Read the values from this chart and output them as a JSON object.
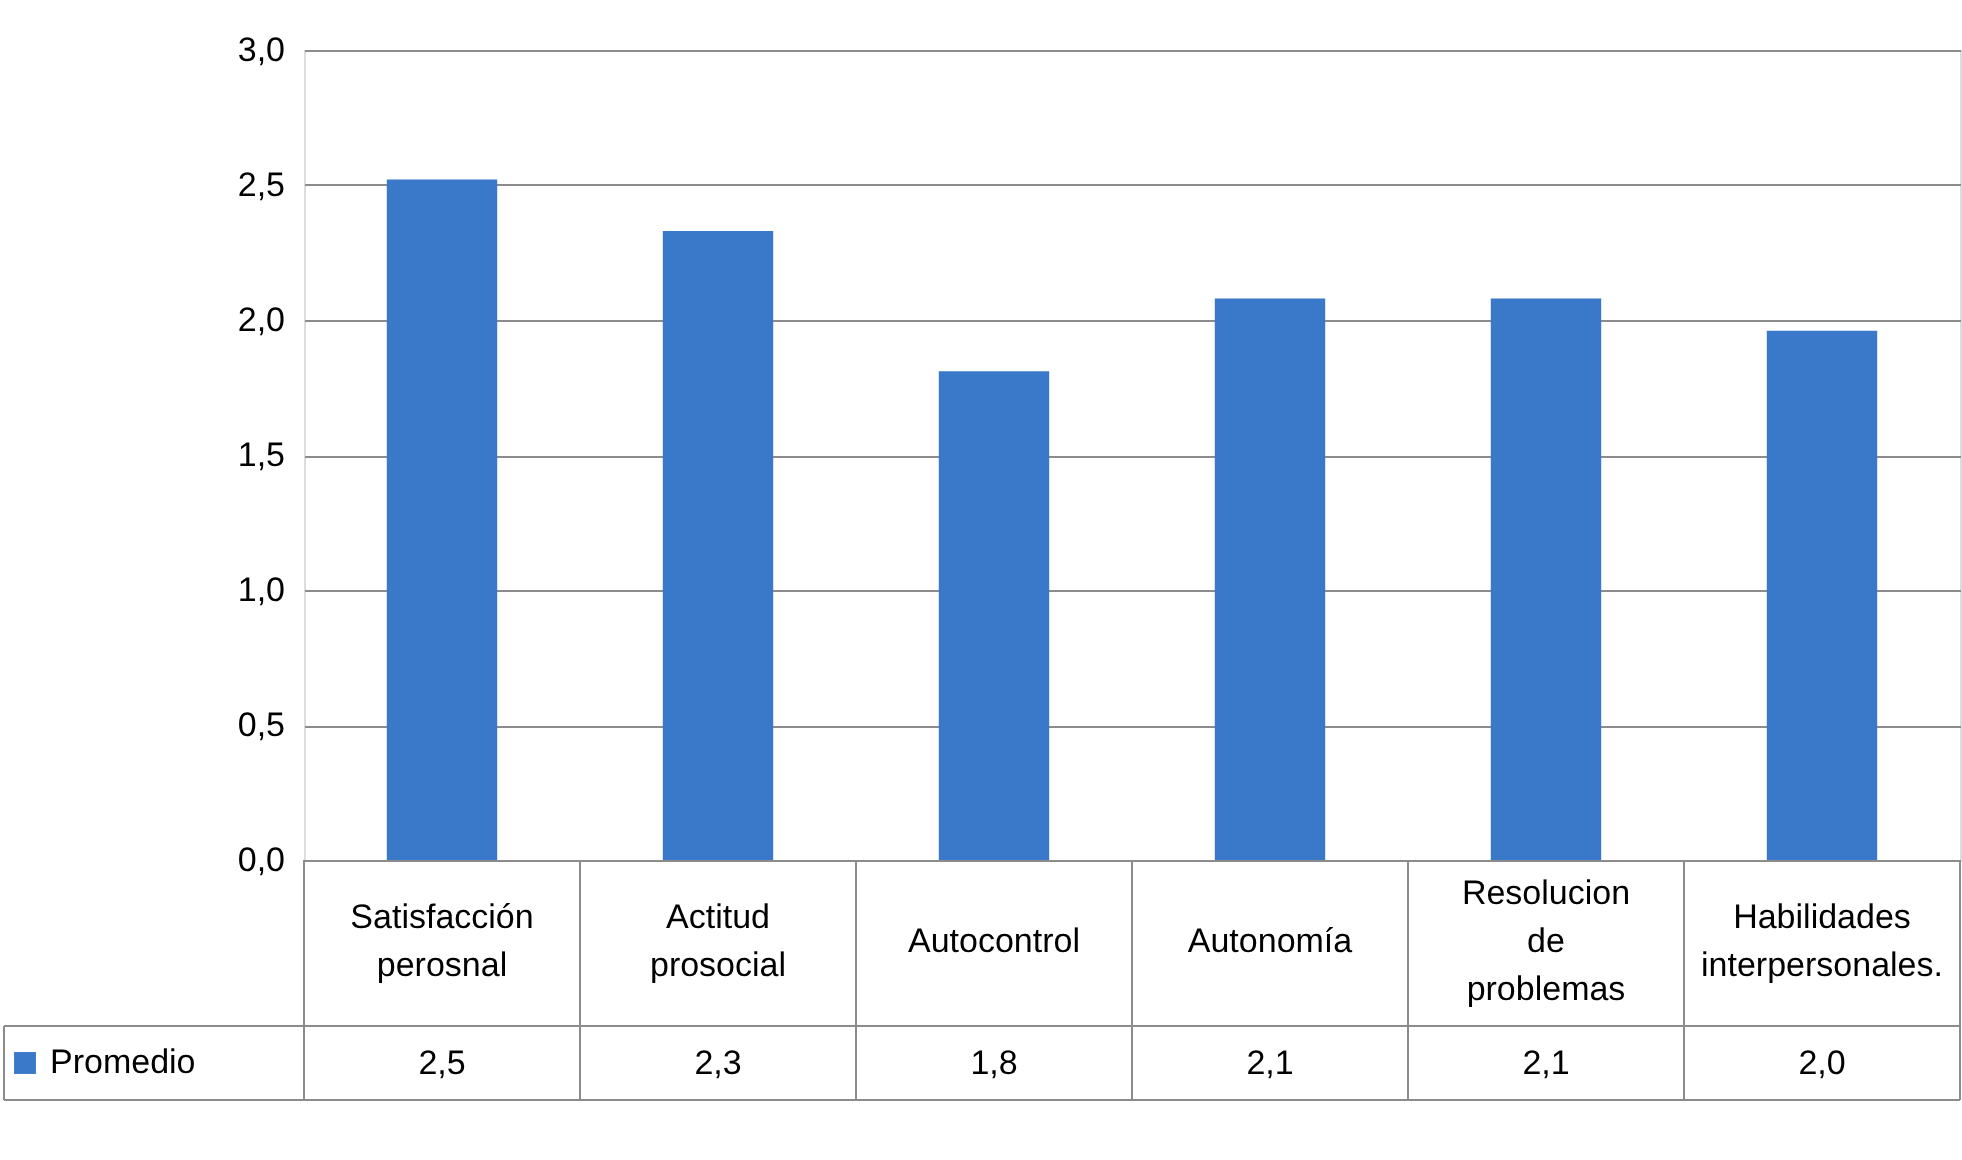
{
  "chart_data": {
    "type": "bar",
    "categories": [
      "Satisfacción perosnal",
      "Actitud prosocial",
      "Autocontrol",
      "Autonomía",
      "Resolucion de problemas",
      "Habilidades interpersonales."
    ],
    "series": [
      {
        "name": "Promedio",
        "color": "#3a78c9",
        "values": [
          2.52,
          2.33,
          1.81,
          2.08,
          2.08,
          1.96
        ],
        "value_labels": [
          "2,5",
          "2,3",
          "1,8",
          "2,1",
          "2,1",
          "2,0"
        ]
      }
    ],
    "ylim": [
      0,
      3
    ],
    "yticks": [
      {
        "value": 0,
        "label": "0,0"
      },
      {
        "value": 0.5,
        "label": "0,5"
      },
      {
        "value": 1,
        "label": "1,0"
      },
      {
        "value": 1.5,
        "label": "1,5"
      },
      {
        "value": 2,
        "label": "2,0"
      },
      {
        "value": 2.5,
        "label": "2,5"
      },
      {
        "value": 3,
        "label": "3,0"
      }
    ],
    "grid": "y",
    "legend": "bottom left"
  }
}
